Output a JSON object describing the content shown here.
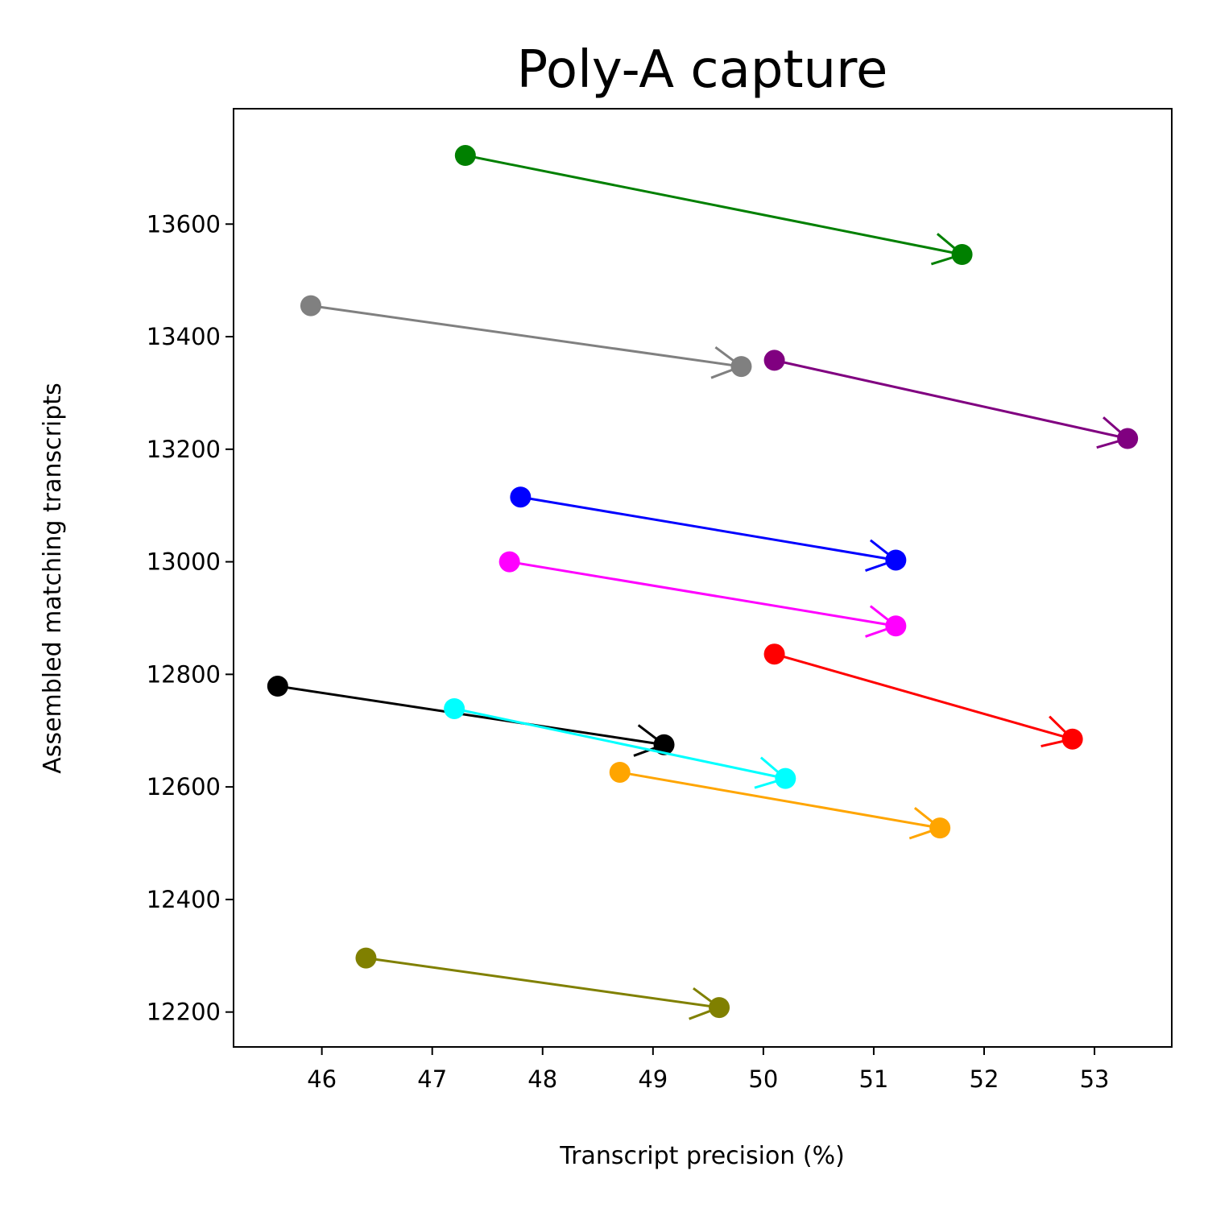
{
  "chart_data": {
    "type": "scatter",
    "title": "Poly-A capture",
    "xlabel": "Transcript precision (%)",
    "ylabel": "Assembled matching transcripts",
    "xlim": [
      45.2,
      53.7
    ],
    "ylim": [
      12138,
      13805
    ],
    "xticks": [
      46,
      47,
      48,
      49,
      50,
      51,
      52,
      53
    ],
    "yticks": [
      12200,
      12400,
      12600,
      12800,
      13000,
      13200,
      13400,
      13600
    ],
    "grid": false,
    "series": [
      {
        "color": "#008000",
        "points": [
          {
            "x": 47.3,
            "y": 13722
          },
          {
            "x": 51.8,
            "y": 13546
          }
        ]
      },
      {
        "color": "#808080",
        "points": [
          {
            "x": 45.9,
            "y": 13455
          },
          {
            "x": 49.8,
            "y": 13347
          }
        ]
      },
      {
        "color": "#800080",
        "points": [
          {
            "x": 50.1,
            "y": 13358
          },
          {
            "x": 53.3,
            "y": 13219
          }
        ]
      },
      {
        "color": "#0000ff",
        "points": [
          {
            "x": 47.8,
            "y": 13115
          },
          {
            "x": 51.2,
            "y": 13003
          }
        ]
      },
      {
        "color": "#ff00ff",
        "points": [
          {
            "x": 47.7,
            "y": 13000
          },
          {
            "x": 51.2,
            "y": 12886
          }
        ]
      },
      {
        "color": "#ff0000",
        "points": [
          {
            "x": 50.1,
            "y": 12836
          },
          {
            "x": 52.8,
            "y": 12685
          }
        ]
      },
      {
        "color": "#000000",
        "points": [
          {
            "x": 45.6,
            "y": 12779
          },
          {
            "x": 49.1,
            "y": 12675
          }
        ]
      },
      {
        "color": "#00ffff",
        "points": [
          {
            "x": 47.2,
            "y": 12739
          },
          {
            "x": 50.2,
            "y": 12615
          }
        ]
      },
      {
        "color": "#ffa500",
        "points": [
          {
            "x": 48.7,
            "y": 12626
          },
          {
            "x": 51.6,
            "y": 12527
          }
        ]
      },
      {
        "color": "#808000",
        "points": [
          {
            "x": 46.4,
            "y": 12296
          },
          {
            "x": 49.6,
            "y": 12208
          }
        ]
      }
    ]
  }
}
